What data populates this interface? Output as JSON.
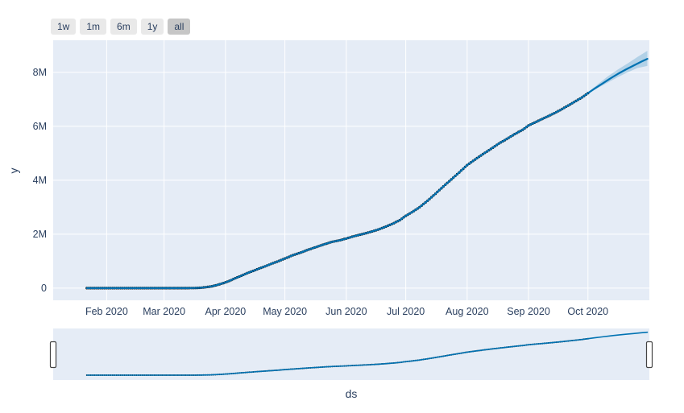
{
  "page": {
    "background": "#ffffff"
  },
  "range_selector": {
    "buttons": [
      {
        "label": "1w",
        "active": false
      },
      {
        "label": "1m",
        "active": false
      },
      {
        "label": "6m",
        "active": false
      },
      {
        "label": "1y",
        "active": false
      },
      {
        "label": "all",
        "active": true
      }
    ],
    "button_bg": "#e9e9e9",
    "active_bg": "#c6c6c6",
    "text_color": "#2a3f5f"
  },
  "chart_data": {
    "type": "line",
    "title": "",
    "xlabel": "ds",
    "ylabel": "y",
    "legend": "none",
    "plot_bg": "#E5ECF6",
    "grid_color": "#ffffff",
    "text_color": "#2a3f5f",
    "x_axis": {
      "unit": "days",
      "domain_days": [
        -17,
        284
      ],
      "tick_days": [
        10,
        39,
        70,
        100,
        131,
        161,
        192,
        223,
        253
      ],
      "tick_labels": [
        "Feb 2020",
        "Mar 2020",
        "Apr 2020",
        "May 2020",
        "Jun 2020",
        "Jul 2020",
        "Aug 2020",
        "Sep 2020",
        "Oct 2020"
      ]
    },
    "y_axis": {
      "unit": "millions",
      "domain": [
        -0.45,
        9.19
      ],
      "tick_values": [
        0,
        2,
        4,
        6,
        8
      ],
      "tick_labels": [
        "0",
        "2M",
        "4M",
        "6M",
        "8M"
      ]
    },
    "series": [
      {
        "name": "actual",
        "type": "scatter",
        "color": "#000000",
        "marker_radius": 1.6,
        "points": [
          [
            0,
            0.0
          ],
          [
            6,
            0.0
          ],
          [
            14,
            0.0
          ],
          [
            24,
            0.0
          ],
          [
            34,
            0.0
          ],
          [
            39,
            0.0001
          ],
          [
            44,
            0.0003
          ],
          [
            48,
            0.001
          ],
          [
            51,
            0.002
          ],
          [
            54,
            0.005
          ],
          [
            57,
            0.013
          ],
          [
            60,
            0.033
          ],
          [
            63,
            0.066
          ],
          [
            66,
            0.122
          ],
          [
            69,
            0.19
          ],
          [
            72,
            0.27
          ],
          [
            75,
            0.37
          ],
          [
            78,
            0.46
          ],
          [
            81,
            0.56
          ],
          [
            84,
            0.64
          ],
          [
            87,
            0.73
          ],
          [
            90,
            0.81
          ],
          [
            93,
            0.9
          ],
          [
            96,
            0.98
          ],
          [
            100,
            1.1
          ],
          [
            104,
            1.22
          ],
          [
            108,
            1.32
          ],
          [
            112,
            1.43
          ],
          [
            116,
            1.53
          ],
          [
            120,
            1.63
          ],
          [
            124,
            1.72
          ],
          [
            128,
            1.78
          ],
          [
            131,
            1.84
          ],
          [
            135,
            1.93
          ],
          [
            139,
            2.0
          ],
          [
            143,
            2.08
          ],
          [
            147,
            2.17
          ],
          [
            151,
            2.28
          ],
          [
            155,
            2.41
          ],
          [
            158,
            2.52
          ],
          [
            161,
            2.68
          ],
          [
            164,
            2.81
          ],
          [
            168,
            3.0
          ],
          [
            172,
            3.24
          ],
          [
            176,
            3.5
          ],
          [
            180,
            3.77
          ],
          [
            184,
            4.03
          ],
          [
            188,
            4.29
          ],
          [
            192,
            4.56
          ],
          [
            196,
            4.77
          ],
          [
            200,
            4.97
          ],
          [
            204,
            5.16
          ],
          [
            208,
            5.36
          ],
          [
            212,
            5.53
          ],
          [
            216,
            5.71
          ],
          [
            220,
            5.87
          ],
          [
            223,
            6.03
          ],
          [
            227,
            6.17
          ],
          [
            231,
            6.31
          ],
          [
            235,
            6.45
          ],
          [
            239,
            6.6
          ],
          [
            243,
            6.77
          ],
          [
            247,
            6.94
          ],
          [
            250,
            7.07
          ],
          [
            253,
            7.23
          ]
        ]
      },
      {
        "name": "forecast_yhat",
        "type": "line",
        "color": "#0072B2",
        "line_width": 2.2,
        "points": [
          [
            256,
            7.38
          ],
          [
            260,
            7.57
          ],
          [
            264,
            7.76
          ],
          [
            268,
            7.94
          ],
          [
            272,
            8.1
          ],
          [
            276,
            8.25
          ],
          [
            280,
            8.4
          ],
          [
            283,
            8.5
          ]
        ]
      },
      {
        "name": "uncertainty_band",
        "type": "band",
        "color": "rgba(0,114,178,0.22)",
        "points": [
          [
            253,
            7.2,
            7.26
          ],
          [
            258,
            7.42,
            7.56
          ],
          [
            263,
            7.62,
            7.85
          ],
          [
            268,
            7.82,
            8.1
          ],
          [
            273,
            8.0,
            8.33
          ],
          [
            278,
            8.16,
            8.57
          ],
          [
            283,
            8.24,
            8.8
          ]
        ]
      }
    ]
  },
  "rangeslider": {
    "present": true,
    "handle_count": 2,
    "bg": "#E5ECF6",
    "handle_fill": "#ffffff",
    "handle_border": "#444444"
  }
}
